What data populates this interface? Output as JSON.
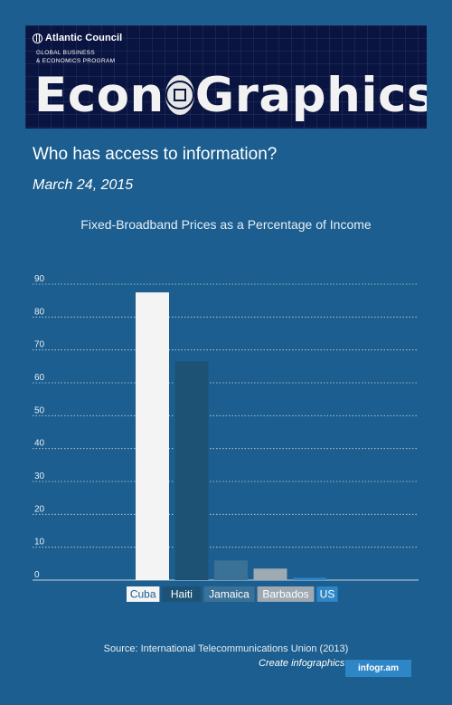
{
  "header": {
    "org_name": "Atlantic Council",
    "program_line1": "GLOBAL BUSINESS",
    "program_line2": "& ECONOMICS PROGRAM",
    "brand_left": "Econ",
    "brand_right": "Graphics",
    "logo_icon": "globe-icon",
    "seal_icon": "seal-icon"
  },
  "headline": "Who has access to information?",
  "date": "March 24, 2015",
  "colors": {
    "background": "#1b5e8f",
    "banner": "#0a1440",
    "badge": "#2e86c6"
  },
  "chart_data": {
    "type": "bar",
    "title": "Fixed-Broadband Prices as a Percentage of Income",
    "xlabel": "",
    "ylabel": "",
    "categories": [
      "Cuba",
      "Haiti",
      "Jamaica",
      "Barbados",
      "US"
    ],
    "values": [
      87.5,
      66.5,
      6,
      3.5,
      0.7
    ],
    "bar_colors": [
      "#f4f4f4",
      "#1d5274",
      "#3a7196",
      "#9ea9b2",
      "#2e86c6"
    ],
    "label_colors": [
      "#1b5e8f",
      "#ffffff",
      "#ffffff",
      "#ffffff",
      "#ffffff"
    ],
    "yticks": [
      0,
      10,
      20,
      30,
      40,
      50,
      60,
      70,
      80,
      90
    ],
    "ylim": [
      0,
      90
    ],
    "grid": true,
    "legend": "none"
  },
  "footer": {
    "source": "Source:  International Telecommunications Union (2013)",
    "create_link": "Create infographics",
    "badge": "infogr.am"
  }
}
